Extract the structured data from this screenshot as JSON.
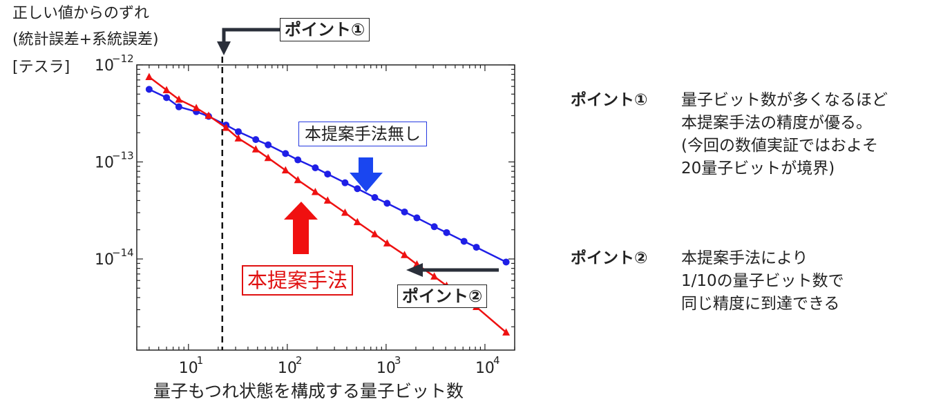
{
  "ylabel": {
    "line1": "正しい値からのずれ",
    "line2": "(統計誤差+系統誤差)",
    "line3": "[テスラ]"
  },
  "xlabel": "量子もつれ状態を構成する量子ビット数",
  "annotations": {
    "point1_box": "ポイント①",
    "point2_box": "ポイント②",
    "without_label": "本提案手法無し",
    "with_label": "本提案手法"
  },
  "side_notes": {
    "p1_head": "ポイント①",
    "p1_lines": [
      "量子ビット数が多くなるほど",
      "本提案手法の精度が優る。",
      "(今回の数値実証ではおよそ",
      "20量子ビットが境界)"
    ],
    "p2_head": "ポイント②",
    "p2_lines": [
      "本提案手法により",
      "1/10の量子ビット数で",
      "同じ精度に到達できる"
    ]
  },
  "colors": {
    "blue_series": "#1f1fe6",
    "red_series": "#ee1111",
    "arrow_blue": "#1a46f0",
    "arrow_red": "#f01010",
    "dark_arrow": "#2a2f3a"
  },
  "chart_data": {
    "type": "line",
    "x_scale": "log",
    "y_scale": "log",
    "xlim": [
      3,
      20000
    ],
    "ylim": [
      1.15e-15,
      1e-12
    ],
    "x_ticks": [
      {
        "value": 10,
        "label": "10",
        "exp": "1"
      },
      {
        "value": 100,
        "label": "10",
        "exp": "2"
      },
      {
        "value": 1000,
        "label": "10",
        "exp": "3"
      },
      {
        "value": 10000,
        "label": "10",
        "exp": "4"
      }
    ],
    "y_ticks": [
      {
        "value": 1e-12,
        "label": "10",
        "exp": "−12"
      },
      {
        "value": 1e-13,
        "label": "10",
        "exp": "−13"
      },
      {
        "value": 1e-14,
        "label": "10",
        "exp": "−14"
      }
    ],
    "threshold_x": 22,
    "series": [
      {
        "name": "本提案手法無し",
        "marker": "circle",
        "x": [
          4,
          6,
          8,
          12,
          16,
          24,
          32,
          48,
          64,
          96,
          128,
          192,
          256,
          384,
          512,
          768,
          1024,
          1536,
          2048,
          3072,
          4096,
          6144,
          8192,
          16384
        ],
        "y": [
          5.6e-13,
          4.6e-13,
          3.7e-13,
          3.3e-13,
          2.95e-13,
          2.4e-13,
          2.05e-13,
          1.7e-13,
          1.5e-13,
          1.22e-13,
          1.05e-13,
          8.7e-14,
          7.5e-14,
          6.1e-14,
          5.3e-14,
          4.3e-14,
          3.75e-14,
          3.05e-14,
          2.65e-14,
          2.15e-14,
          1.87e-14,
          1.52e-14,
          1.32e-14,
          9.3e-15
        ]
      },
      {
        "name": "本提案手法",
        "marker": "triangle",
        "x": [
          4,
          6,
          8,
          12,
          16,
          24,
          32,
          48,
          64,
          96,
          128,
          192,
          256,
          384,
          512,
          768,
          1024,
          1536,
          2048,
          3072,
          4096,
          6144,
          8192,
          16384
        ],
        "y": [
          7.5e-13,
          5.5e-13,
          4.4e-13,
          3.6e-13,
          3e-13,
          2.25e-13,
          1.75e-13,
          1.35e-13,
          1.1e-13,
          8.2e-14,
          6.5e-14,
          4.9e-14,
          4e-14,
          3e-14,
          2.4e-14,
          1.8e-14,
          1.45e-14,
          1.1e-14,
          8.8e-15,
          6.6e-15,
          5.3e-15,
          4e-15,
          3.2e-15,
          1.75e-15
        ]
      }
    ]
  }
}
